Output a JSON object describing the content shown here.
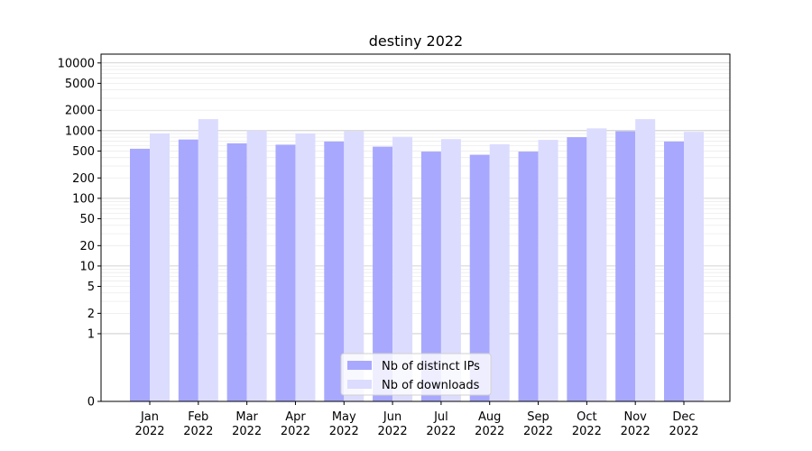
{
  "chart_data": {
    "type": "bar",
    "title": "destiny 2022",
    "xlabel": "",
    "ylabel": "",
    "y_scale": "symlog",
    "ylim": [
      0,
      13500
    ],
    "y_ticks": [
      0,
      1,
      2,
      5,
      10,
      20,
      50,
      100,
      200,
      500,
      1000,
      2000,
      5000,
      10000
    ],
    "categories": [
      "Jan\n2022",
      "Feb\n2022",
      "Mar\n2022",
      "Apr\n2022",
      "May\n2022",
      "Jun\n2022",
      "Jul\n2022",
      "Aug\n2022",
      "Sep\n2022",
      "Oct\n2022",
      "Nov\n2022",
      "Dec\n2022"
    ],
    "series": [
      {
        "name": "Nb of distinct IPs",
        "color": "#a8a8ff",
        "values": [
          540,
          740,
          650,
          620,
          690,
          580,
          490,
          440,
          490,
          800,
          980,
          690
        ]
      },
      {
        "name": "Nb of downloads",
        "color": "#dcdcff",
        "values": [
          910,
          1480,
          1000,
          910,
          980,
          810,
          750,
          630,
          730,
          1080,
          1480,
          960
        ]
      }
    ],
    "legend_position": "bottom-center",
    "grid": true
  }
}
